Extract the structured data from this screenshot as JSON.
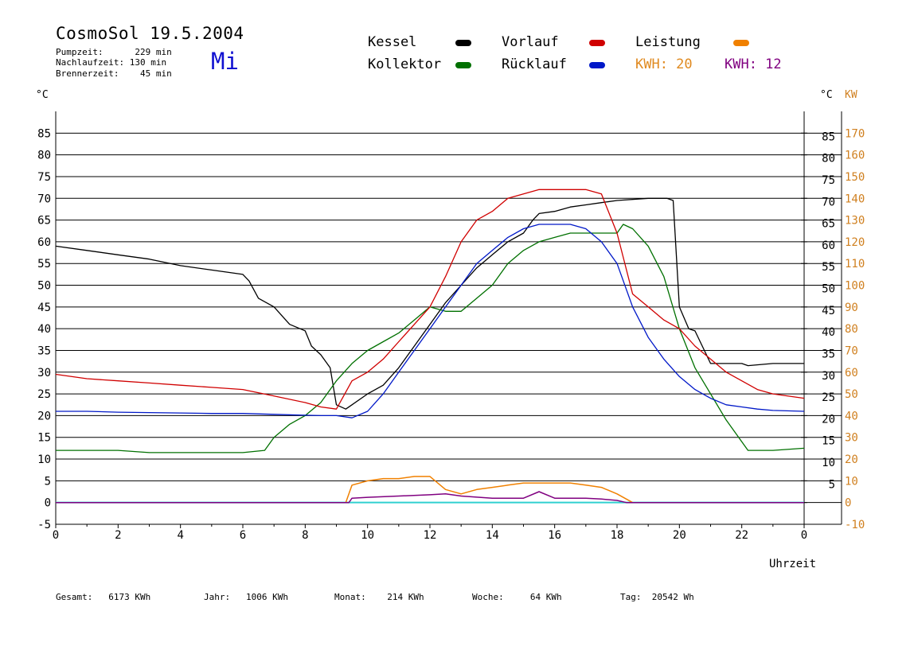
{
  "header": {
    "title": "CosmoSol 19.5.2004",
    "day": "Mi",
    "pumpzeit": "Pumpzeit:      229 min",
    "nachlaufzeit": "Nachlaufzeit: 130 min",
    "brennerzeit": "Brennerzeit:    45 min"
  },
  "legend": {
    "kessel": "Kessel",
    "kollektor": "Kollektor",
    "vorlauf": "Vorlauf",
    "ruecklauf": "Rücklauf",
    "leistung": "Leistung",
    "kwh_orange": "KWH: 20",
    "kwh_purple": "KWH: 12"
  },
  "colors": {
    "kessel": "#000000",
    "kollektor": "#007000",
    "vorlauf": "#d00000",
    "ruecklauf": "#0018c8",
    "leistung": "#f08000",
    "kwh_purple": "#800080",
    "pump": "#30d0d0",
    "axis_right": "#d08020",
    "day": "#1010d0"
  },
  "units": {
    "celsius_left": "°C",
    "celsius_right": "°C",
    "kw": "KW",
    "x": "Uhrzeit"
  },
  "footer": {
    "gesamt": "Gesamt:   6173 KWh",
    "jahr": "Jahr:   1006 KWh",
    "monat": "Monat:    214 KWh",
    "woche": "Woche:     64 KWh",
    "tag": "Tag:  20542 Wh"
  },
  "chart_data": {
    "type": "line",
    "x_ticks": [
      "0",
      "2",
      "4",
      "6",
      "8",
      "10",
      "12",
      "14",
      "16",
      "18",
      "20",
      "22",
      "0"
    ],
    "xlim": [
      0,
      24
    ],
    "ylim": [
      -5,
      90
    ],
    "y_ticks_left": [
      "-5",
      "0",
      "5",
      "10",
      "15",
      "20",
      "25",
      "30",
      "35",
      "40",
      "45",
      "50",
      "55",
      "60",
      "65",
      "70",
      "75",
      "80",
      "85"
    ],
    "y_ticks_right_c": [
      "5",
      "10",
      "15",
      "20",
      "25",
      "30",
      "35",
      "40",
      "45",
      "50",
      "55",
      "60",
      "65",
      "70",
      "75",
      "80",
      "85"
    ],
    "y_ticks_right_kw": [
      "-10",
      "0",
      "10",
      "20",
      "30",
      "40",
      "50",
      "60",
      "70",
      "80",
      "90",
      "100",
      "110",
      "120",
      "130",
      "140",
      "150",
      "160",
      "170"
    ],
    "series": [
      {
        "name": "Kessel",
        "color_key": "kessel",
        "x": [
          0,
          1,
          2,
          3,
          4,
          5,
          6,
          6.2,
          6.5,
          7,
          7.5,
          8,
          8.2,
          8.5,
          8.8,
          9,
          9.3,
          9.5,
          10,
          10.5,
          11,
          11.5,
          12,
          12.5,
          13,
          13.5,
          14,
          14.5,
          15,
          15.3,
          15.5,
          16,
          16.5,
          17,
          17.5,
          18,
          19,
          19.6,
          19.8,
          20,
          20.3,
          20.5,
          20.8,
          21,
          21.5,
          22,
          22.2,
          23,
          24
        ],
        "y": [
          59,
          58,
          57,
          56,
          54.5,
          53.5,
          52.5,
          51,
          47,
          45,
          41,
          39.5,
          36,
          34,
          31,
          22.5,
          21.5,
          22.5,
          25,
          27,
          31,
          36,
          41,
          46,
          50,
          54,
          57,
          60,
          62,
          65,
          66.5,
          67,
          68,
          68.5,
          69,
          69.5,
          70,
          70,
          69.5,
          45,
          40,
          39.5,
          35,
          32,
          32,
          32,
          31.5,
          32,
          32
        ]
      },
      {
        "name": "Kollektor",
        "color_key": "kollektor",
        "x": [
          0,
          1,
          2,
          3,
          4,
          5,
          6,
          6.7,
          7,
          7.5,
          8,
          8.5,
          9,
          9.5,
          10,
          10.5,
          11,
          11.5,
          12,
          12.5,
          13,
          13.5,
          14,
          14.5,
          15,
          15.5,
          16,
          16.5,
          17,
          17.5,
          18,
          18.2,
          18.5,
          19,
          19.5,
          20,
          20.5,
          21,
          21.5,
          22,
          22.2,
          23,
          24
        ],
        "y": [
          12,
          12,
          12,
          11.5,
          11.5,
          11.5,
          11.5,
          12,
          15,
          18,
          20,
          23,
          28,
          32,
          35,
          37,
          39,
          42,
          45,
          44,
          44,
          47,
          50,
          55,
          58,
          60,
          61,
          62,
          62,
          62,
          62,
          64,
          63,
          59,
          52,
          40,
          31,
          25,
          19,
          14,
          12,
          12,
          12.5
        ]
      },
      {
        "name": "Vorlauf",
        "color_key": "vorlauf",
        "x": [
          0,
          1,
          2,
          3,
          4,
          5,
          6,
          7,
          8,
          8.5,
          9,
          9.5,
          10,
          10.5,
          11,
          11.5,
          12,
          12.5,
          13,
          13.5,
          14,
          14.5,
          15,
          15.5,
          16,
          16.5,
          17,
          17.5,
          18,
          18.5,
          19,
          19.5,
          20,
          20.5,
          21,
          21.5,
          22,
          22.5,
          23,
          24
        ],
        "y": [
          29.5,
          28.5,
          28,
          27.5,
          27,
          26.5,
          26,
          24.5,
          23,
          22,
          21.5,
          28,
          30,
          33,
          37,
          41,
          45,
          52,
          60,
          65,
          67,
          70,
          71,
          72,
          72,
          72,
          72,
          71,
          62,
          48,
          45,
          42,
          40,
          36,
          33,
          30,
          28,
          26,
          25,
          24
        ]
      },
      {
        "name": "Rücklauf",
        "color_key": "ruecklauf",
        "x": [
          0,
          1,
          2,
          3,
          4,
          5,
          6,
          7,
          8,
          8.5,
          9,
          9.5,
          10,
          10.5,
          11,
          11.5,
          12,
          12.5,
          13,
          13.5,
          14,
          14.5,
          15,
          15.5,
          16,
          16.5,
          17,
          17.5,
          18,
          18.5,
          19,
          19.5,
          20,
          20.5,
          21,
          21.5,
          22,
          22.5,
          23,
          24
        ],
        "y": [
          21,
          21,
          20.8,
          20.7,
          20.6,
          20.5,
          20.5,
          20.3,
          20.1,
          20,
          20,
          19.5,
          21,
          25,
          30,
          35,
          40,
          45,
          50,
          55,
          58,
          61,
          63,
          64,
          64,
          64,
          63,
          60,
          55,
          45,
          38,
          33,
          29,
          26,
          24,
          22.5,
          22,
          21.5,
          21.2,
          21
        ]
      },
      {
        "name": "Leistung",
        "color_key": "leistung",
        "x": [
          0,
          9.3,
          9.5,
          10,
          10.5,
          11,
          11.5,
          12,
          12.5,
          13,
          13.5,
          14,
          14.5,
          15,
          15.5,
          16,
          16.5,
          17,
          17.5,
          18,
          18.5,
          24
        ],
        "y": [
          0,
          0,
          4,
          5,
          5.5,
          5.5,
          6,
          6,
          3,
          2,
          3,
          3.5,
          4,
          4.5,
          4.5,
          4.5,
          4.5,
          4,
          3.5,
          2,
          0,
          0
        ]
      },
      {
        "name": "KWH: 12",
        "color_key": "kwh_purple",
        "x": [
          0,
          9.4,
          9.5,
          10,
          11,
          12,
          12.5,
          13,
          14,
          15,
          15.5,
          16,
          17,
          17.5,
          18,
          18.3,
          24
        ],
        "y": [
          0,
          0,
          1,
          1.2,
          1.5,
          1.8,
          2,
          1.5,
          1,
          1,
          2.5,
          1,
          1,
          0.8,
          0.5,
          0,
          0
        ]
      }
    ]
  }
}
